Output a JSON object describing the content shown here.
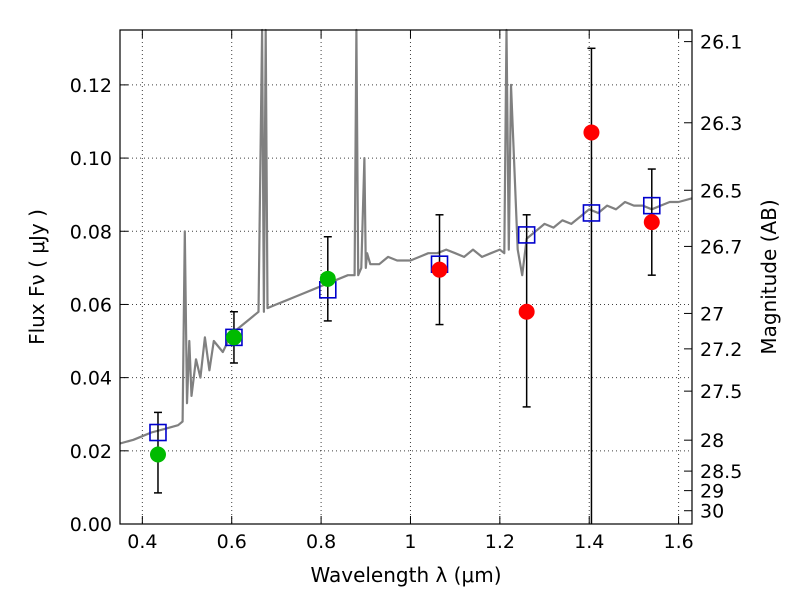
{
  "chart_data": {
    "type": "scatter",
    "xlabel": "Wavelength  λ (μm)",
    "ylabel": "Flux  Fν  ( μJy )",
    "ylabel_right": "Magnitude (AB)",
    "xlim": [
      0.35,
      1.63
    ],
    "ylim": [
      0.0,
      0.135
    ],
    "grid": true,
    "x_ticks": [
      0.4,
      0.6,
      0.8,
      1.0,
      1.2,
      1.4,
      1.6
    ],
    "x_tick_labels": [
      "0.4",
      "0.6",
      "0.8",
      "1",
      "1.2",
      "1.4",
      "1.6"
    ],
    "y_ticks": [
      0.0,
      0.02,
      0.04,
      0.06,
      0.08,
      0.1,
      0.12
    ],
    "y_tick_labels": [
      "0.00",
      "0.02",
      "0.04",
      "0.06",
      "0.08",
      "0.10",
      "0.12"
    ],
    "right_ticks": [
      26.1,
      26.3,
      26.5,
      26.7,
      27,
      27.2,
      27.5,
      28,
      28.5,
      29,
      30
    ],
    "right_tick_labels": [
      "26.1",
      "26.3",
      "26.5",
      "26.7",
      "27",
      "27.2",
      "27.5",
      "28",
      "28.5",
      "29",
      "30"
    ],
    "colors": {
      "spectrum": "#808080",
      "model": "#0000cc",
      "optical": "#00bb00",
      "infrared": "#ff0000",
      "errorbar": "#000000"
    },
    "series": [
      {
        "kind": "spectrum",
        "x": [
          0.35,
          0.38,
          0.4,
          0.42,
          0.45,
          0.48,
          0.49,
          0.495,
          0.5,
          0.505,
          0.51,
          0.52,
          0.53,
          0.54,
          0.55,
          0.56,
          0.58,
          0.6,
          0.62,
          0.64,
          0.66,
          0.668,
          0.672,
          0.676,
          0.68,
          0.7,
          0.72,
          0.74,
          0.76,
          0.78,
          0.8,
          0.82,
          0.84,
          0.86,
          0.875,
          0.879,
          0.883,
          0.89,
          0.897,
          0.9,
          0.903,
          0.91,
          0.93,
          0.95,
          0.97,
          1.0,
          1.02,
          1.04,
          1.06,
          1.08,
          1.1,
          1.12,
          1.14,
          1.16,
          1.18,
          1.2,
          1.21,
          1.215,
          1.22,
          1.225,
          1.24,
          1.25,
          1.26,
          1.28,
          1.3,
          1.32,
          1.34,
          1.36,
          1.38,
          1.4,
          1.42,
          1.44,
          1.46,
          1.48,
          1.5,
          1.52,
          1.54,
          1.56,
          1.58,
          1.6,
          1.63
        ],
        "y": [
          0.022,
          0.023,
          0.024,
          0.025,
          0.026,
          0.027,
          0.028,
          0.08,
          0.033,
          0.05,
          0.035,
          0.045,
          0.04,
          0.051,
          0.042,
          0.05,
          0.047,
          0.052,
          0.054,
          0.056,
          0.058,
          0.14,
          0.058,
          0.14,
          0.059,
          0.06,
          0.061,
          0.062,
          0.063,
          0.064,
          0.065,
          0.066,
          0.067,
          0.068,
          0.068,
          0.14,
          0.068,
          0.07,
          0.1,
          0.07,
          0.074,
          0.071,
          0.071,
          0.073,
          0.072,
          0.072,
          0.073,
          0.074,
          0.074,
          0.075,
          0.074,
          0.073,
          0.075,
          0.073,
          0.074,
          0.075,
          0.074,
          0.14,
          0.075,
          0.12,
          0.075,
          0.068,
          0.078,
          0.08,
          0.082,
          0.081,
          0.083,
          0.082,
          0.084,
          0.086,
          0.085,
          0.087,
          0.086,
          0.088,
          0.087,
          0.087,
          0.086,
          0.087,
          0.088,
          0.088,
          0.089
        ]
      },
      {
        "kind": "model",
        "marker": "open-square",
        "x": [
          0.435,
          0.605,
          0.815,
          1.065,
          1.26,
          1.405,
          1.54
        ],
        "y": [
          0.025,
          0.051,
          0.064,
          0.071,
          0.079,
          0.085,
          0.087
        ]
      },
      {
        "kind": "optical",
        "marker": "filled-circle",
        "x": [
          0.435,
          0.605,
          0.815
        ],
        "y": [
          0.019,
          0.051,
          0.067
        ],
        "yerr_low": [
          0.0085,
          0.044,
          0.0555
        ],
        "yerr_high": [
          0.0305,
          0.058,
          0.0785
        ]
      },
      {
        "kind": "infrared",
        "marker": "filled-circle",
        "x": [
          1.065,
          1.26,
          1.405,
          1.54
        ],
        "y": [
          0.0695,
          0.058,
          0.107,
          0.0825
        ],
        "yerr_low": [
          0.0545,
          0.032,
          null,
          0.068
        ],
        "yerr_high": [
          0.0845,
          0.0845,
          0.13,
          0.097
        ]
      }
    ]
  }
}
